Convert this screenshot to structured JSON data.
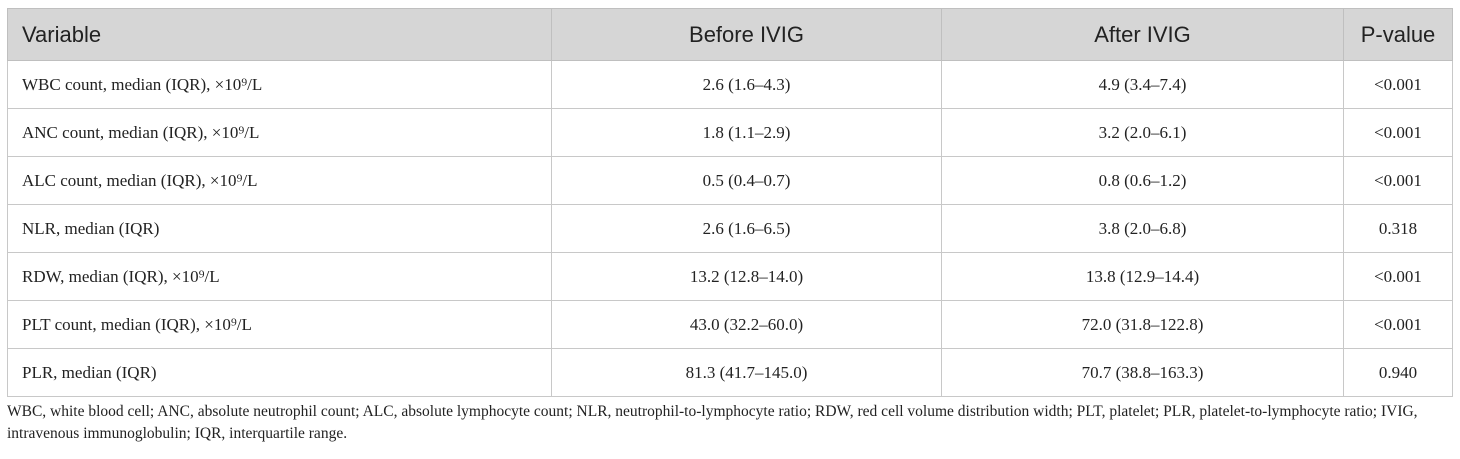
{
  "table": {
    "columns": [
      "Variable",
      "Before IVIG",
      "After IVIG",
      "P-value"
    ],
    "rows": [
      [
        "WBC count, median (IQR), ×10⁹/L",
        "2.6 (1.6–4.3)",
        "4.9 (3.4–7.4)",
        "<0.001"
      ],
      [
        "ANC count, median (IQR), ×10⁹/L",
        "1.8 (1.1–2.9)",
        "3.2 (2.0–6.1)",
        "<0.001"
      ],
      [
        "ALC count, median (IQR), ×10⁹/L",
        "0.5 (0.4–0.7)",
        "0.8 (0.6–1.2)",
        "<0.001"
      ],
      [
        "NLR, median (IQR)",
        "2.6 (1.6–6.5)",
        "3.8 (2.0–6.8)",
        "0.318"
      ],
      [
        "RDW, median (IQR), ×10⁹/L",
        "13.2 (12.8–14.0)",
        "13.8 (12.9–14.4)",
        "<0.001"
      ],
      [
        "PLT count, median (IQR), ×10⁹/L",
        "43.0 (32.2–60.0)",
        "72.0 (31.8–122.8)",
        "<0.001"
      ],
      [
        "PLR, median (IQR)",
        "81.3 (41.7–145.0)",
        "70.7 (38.8–163.3)",
        "0.940"
      ]
    ]
  },
  "footnote": "WBC, white blood cell; ANC, absolute neutrophil count; ALC, absolute lymphocyte count; NLR, neutrophil-to-lymphocyte ratio; RDW, red cell volume distribution width; PLT, platelet; PLR, platelet-to-lymphocyte ratio; IVIG, intravenous immunoglobulin; IQR, interquartile range."
}
